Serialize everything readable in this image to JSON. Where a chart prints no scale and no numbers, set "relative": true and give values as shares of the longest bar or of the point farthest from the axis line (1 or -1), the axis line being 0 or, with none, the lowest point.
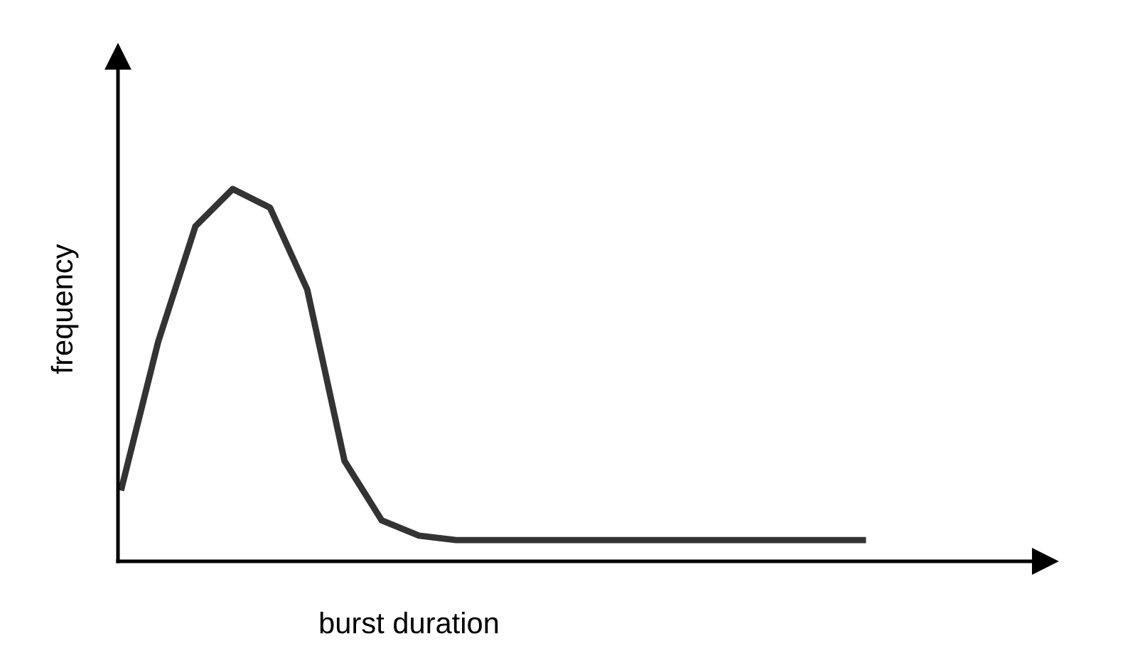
{
  "chart_data": {
    "type": "line",
    "relative": true,
    "xlabel": "burst duration",
    "ylabel": "frequency",
    "categories": [
      null,
      null,
      null,
      null,
      null,
      null,
      null,
      null,
      null,
      null,
      null,
      null,
      null,
      null,
      null,
      null,
      null,
      null,
      null,
      null,
      null
    ],
    "series": [
      {
        "color": "#333333",
        "values": [
          0.19,
          0.59,
          0.9,
          1.0,
          0.95,
          0.73,
          0.27,
          0.11,
          0.069,
          0.057,
          0.057,
          0.057,
          0.057,
          0.057,
          0.057,
          0.057,
          0.057,
          0.057,
          0.057,
          0.057,
          0.057
        ]
      }
    ],
    "marker": "none",
    "line_style": "solid",
    "legend": false,
    "tick_labels": false
  }
}
